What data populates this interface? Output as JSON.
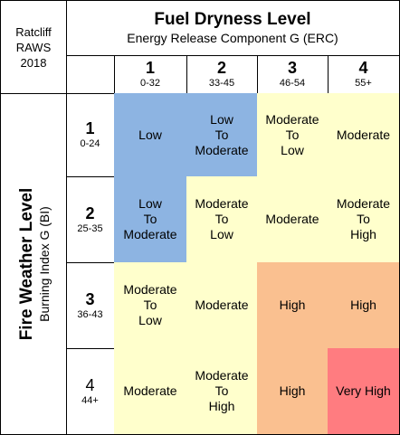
{
  "corner": {
    "line1": "Ratcliff",
    "line2": "RAWS",
    "line3": "2018"
  },
  "header": {
    "title": "Fuel Dryness Level",
    "subtitle": "Energy Release Component G (ERC)"
  },
  "columns": [
    {
      "num": "1",
      "range": "0-32"
    },
    {
      "num": "2",
      "range": "33-45"
    },
    {
      "num": "3",
      "range": "46-54"
    },
    {
      "num": "4",
      "range": "55+"
    }
  ],
  "side": {
    "title": "Fire Weather Level",
    "subtitle": "Burning Index G (BI)"
  },
  "rows": [
    {
      "num": "1",
      "range": "0-24",
      "cells": [
        [
          "Low"
        ],
        [
          "Low",
          "To",
          "Moderate"
        ],
        [
          "Moderate",
          "To",
          "Low"
        ],
        [
          "Moderate"
        ]
      ]
    },
    {
      "num": "2",
      "range": "25-35",
      "cells": [
        [
          "Low",
          "To",
          "Moderate"
        ],
        [
          "Moderate",
          "To",
          "Low"
        ],
        [
          "Moderate"
        ],
        [
          "Moderate",
          "To",
          "High"
        ]
      ]
    },
    {
      "num": "3",
      "range": "36-43",
      "cells": [
        [
          "Moderate",
          "To",
          "Low"
        ],
        [
          "Moderate"
        ],
        [
          "High"
        ],
        [
          "High"
        ]
      ]
    },
    {
      "num": "4",
      "range": "44+",
      "cells": [
        [
          "Moderate"
        ],
        [
          "Moderate",
          "To",
          "High"
        ],
        [
          "High"
        ],
        [
          "Very High"
        ]
      ]
    }
  ],
  "colors": {
    "blue": "#8db4e2",
    "yellow": "#ffffcc",
    "orange": "#fac090",
    "red": "#ff7c80"
  },
  "cell_colors": [
    [
      "blue",
      "blue",
      "yellow",
      "yellow"
    ],
    [
      "blue",
      "yellow",
      "yellow",
      "yellow"
    ],
    [
      "yellow",
      "yellow",
      "orange",
      "orange"
    ],
    [
      "yellow",
      "yellow",
      "orange",
      "red"
    ]
  ]
}
